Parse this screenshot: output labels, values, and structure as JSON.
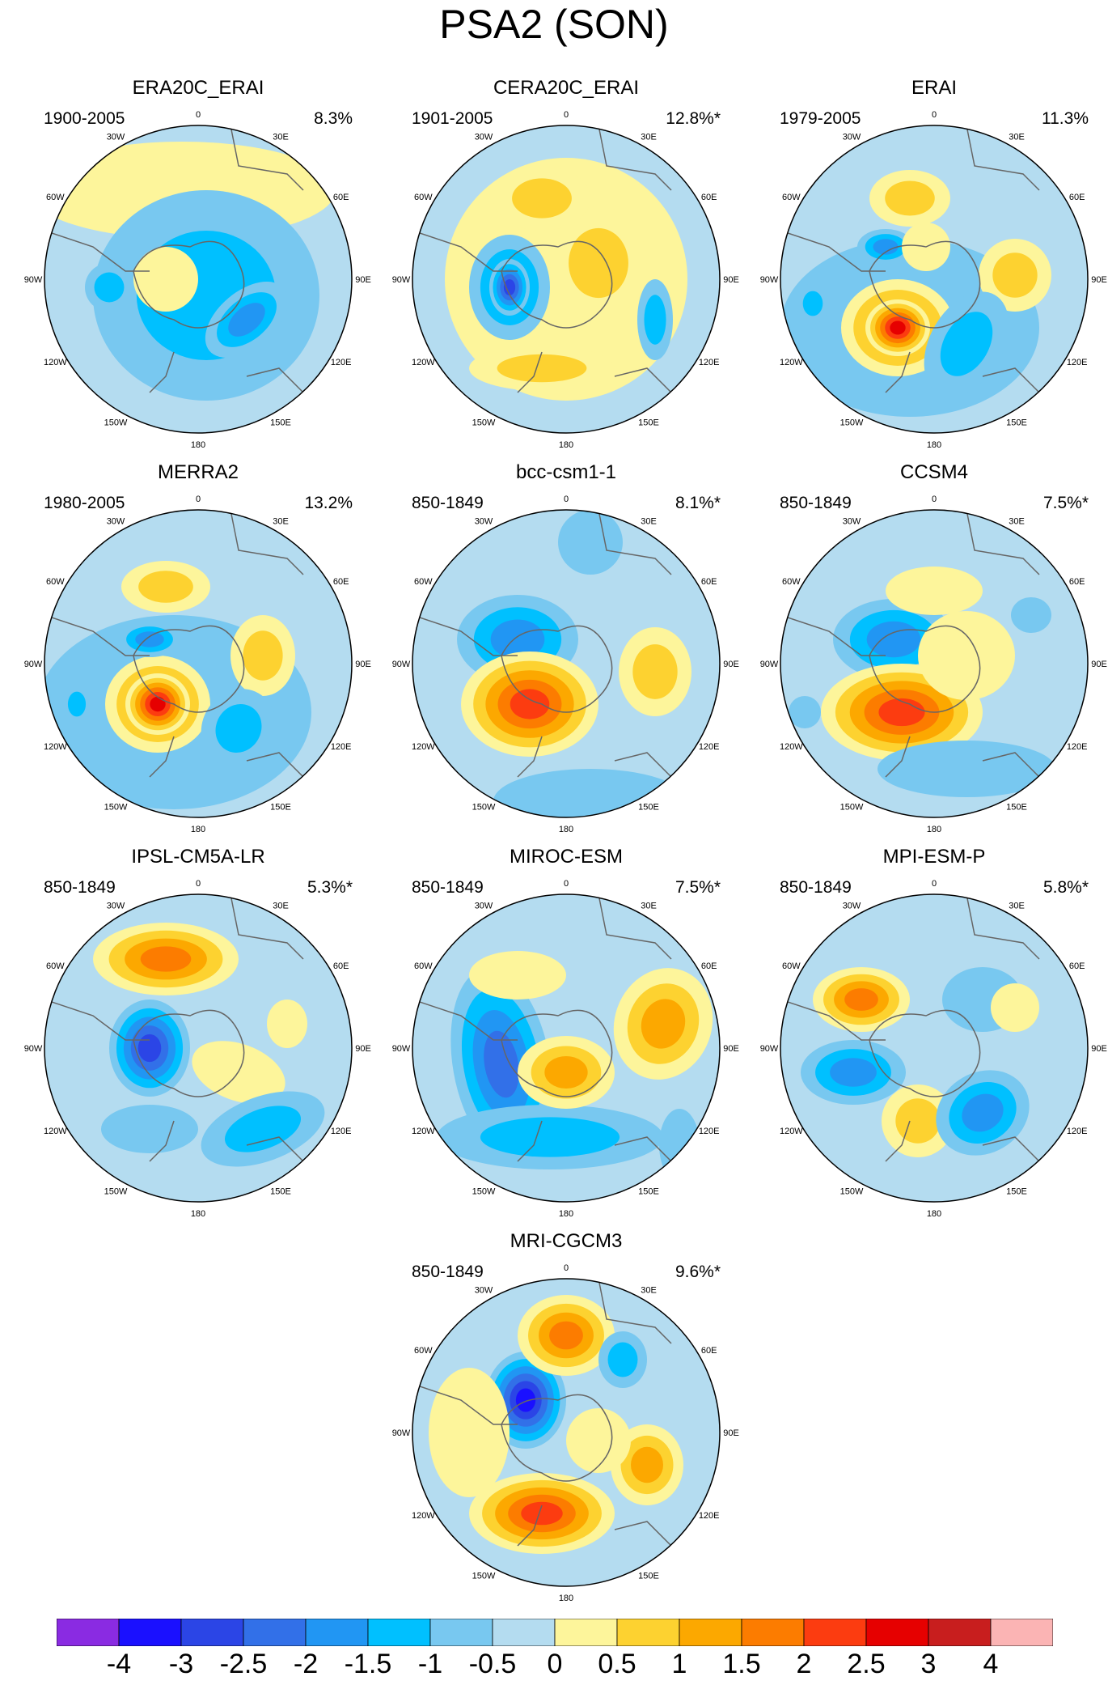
{
  "title": "PSA2 (SON)",
  "map_labels": {
    "0": "0",
    "30E": "30E",
    "60E": "60E",
    "90E": "90E",
    "120E": "120E",
    "150E": "150E",
    "180": "180",
    "150W": "150W",
    "120W": "120W",
    "90W": "90W",
    "60W": "60W",
    "30W": "30W"
  },
  "panels": [
    {
      "name": "ERA20C_ERAI",
      "period": "1900-2005",
      "variance": "8.3%"
    },
    {
      "name": "CERA20C_ERAI",
      "period": "1901-2005",
      "variance": "12.8%*"
    },
    {
      "name": "ERAI",
      "period": "1979-2005",
      "variance": "11.3%"
    },
    {
      "name": "MERRA2",
      "period": "1980-2005",
      "variance": "13.2%"
    },
    {
      "name": "bcc-csm1-1",
      "period": "850-1849",
      "variance": "8.1%*"
    },
    {
      "name": "CCSM4",
      "period": "850-1849",
      "variance": "7.5%*"
    },
    {
      "name": "IPSL-CM5A-LR",
      "period": "850-1849",
      "variance": "5.3%*"
    },
    {
      "name": "MIROC-ESM",
      "period": "850-1849",
      "variance": "7.5%*"
    },
    {
      "name": "MPI-ESM-P",
      "period": "850-1849",
      "variance": "5.8%*"
    },
    {
      "name": "MRI-CGCM3",
      "period": "850-1849",
      "variance": "9.6%*"
    }
  ],
  "colorbar": {
    "labels": [
      "-4",
      "-3",
      "-2.5",
      "-2",
      "-1.5",
      "-1",
      "-0.5",
      "0",
      "0.5",
      "1",
      "1.5",
      "2",
      "2.5",
      "3",
      "4"
    ],
    "colors": [
      "#8a2be2",
      "#1a10ff",
      "#2b45e6",
      "#3270e8",
      "#2196f3",
      "#00c0ff",
      "#78c8f0",
      "#b4dcf0",
      "#fdf59b",
      "#fdd230",
      "#fca800",
      "#fc7c00",
      "#fc3c10",
      "#e60000",
      "#c81e1e",
      "#fbb4b4"
    ]
  },
  "colors": {
    "land_outline": "#666666",
    "frame": "#000000"
  }
}
